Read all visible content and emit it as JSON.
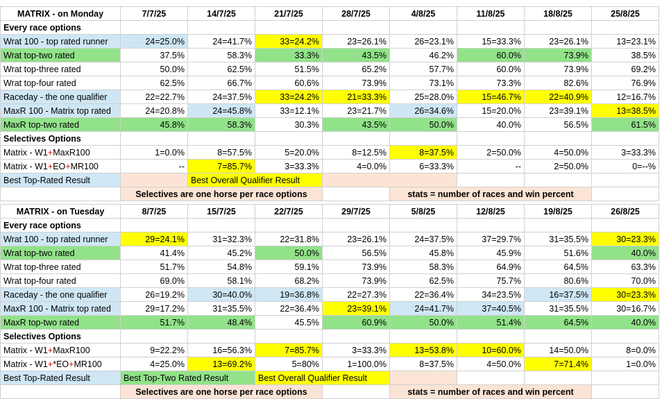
{
  "tables": [
    {
      "title": "MATRIX - on Monday",
      "dates": [
        "7/7/25",
        "14/7/25",
        "21/7/25",
        "28/7/25",
        "4/8/25",
        "11/8/25",
        "18/8/25",
        "25/8/25"
      ],
      "section1": "Every race options",
      "rows": [
        {
          "label": "Wrat 100 - top rated runner",
          "lc": "c-blue",
          "cells": [
            [
              "24=25.0%",
              "c-blue"
            ],
            [
              "24=41.7%",
              ""
            ],
            [
              "33=24.2%",
              "c-yellow"
            ],
            [
              "23=26.1%",
              ""
            ],
            [
              "26=23.1%",
              ""
            ],
            [
              "15=33.3%",
              ""
            ],
            [
              "23=26.1%",
              ""
            ],
            [
              "13=23.1%",
              ""
            ]
          ]
        },
        {
          "label": "Wrat top-two rated",
          "lc": "c-green",
          "cells": [
            [
              "37.5%",
              ""
            ],
            [
              "58.3%",
              ""
            ],
            [
              "33.3%",
              "c-green"
            ],
            [
              "43.5%",
              "c-green"
            ],
            [
              "46.2%",
              ""
            ],
            [
              "60.0%",
              "c-green"
            ],
            [
              "73.9%",
              "c-green"
            ],
            [
              "38.5%",
              ""
            ]
          ]
        },
        {
          "label": "Wrat top-three rated",
          "lc": "",
          "cells": [
            [
              "50.0%",
              ""
            ],
            [
              "62.5%",
              ""
            ],
            [
              "51.5%",
              ""
            ],
            [
              "65.2%",
              ""
            ],
            [
              "57.7%",
              ""
            ],
            [
              "60.0%",
              ""
            ],
            [
              "73.9%",
              ""
            ],
            [
              "69.2%",
              ""
            ]
          ]
        },
        {
          "label": "Wrat top-four rated",
          "lc": "",
          "cells": [
            [
              "62.5%",
              ""
            ],
            [
              "66.7%",
              ""
            ],
            [
              "60.6%",
              ""
            ],
            [
              "73.9%",
              ""
            ],
            [
              "73.1%",
              ""
            ],
            [
              "73.3%",
              ""
            ],
            [
              "82.6%",
              ""
            ],
            [
              "76.9%",
              ""
            ]
          ]
        },
        {
          "label": "Raceday - the one qualifier",
          "lc": "c-blue",
          "cells": [
            [
              "22=22.7%",
              ""
            ],
            [
              "24=37.5%",
              ""
            ],
            [
              "33=24.2%",
              "c-yellow"
            ],
            [
              "21=33.3%",
              "c-yellow"
            ],
            [
              "25=28.0%",
              ""
            ],
            [
              "15=46.7%",
              "c-yellow"
            ],
            [
              "22=40.9%",
              "c-yellow"
            ],
            [
              "12=16.7%",
              ""
            ]
          ]
        },
        {
          "label": "MaxR 100 - Matrix top rated",
          "lc": "c-blue",
          "cells": [
            [
              "24=20.8%",
              ""
            ],
            [
              "24=45.8%",
              "c-blue"
            ],
            [
              "33=12.1%",
              ""
            ],
            [
              "23=21.7%",
              ""
            ],
            [
              "26=34.6%",
              "c-blue"
            ],
            [
              "15=20.0%",
              ""
            ],
            [
              "23=39.1%",
              ""
            ],
            [
              "13=38.5%",
              "c-yellow"
            ]
          ]
        },
        {
          "label": "MaxR top-two rated",
          "lc": "c-green",
          "cells": [
            [
              "45.8%",
              "c-green"
            ],
            [
              "58.3%",
              "c-green"
            ],
            [
              "30.3%",
              ""
            ],
            [
              "43.5%",
              "c-green"
            ],
            [
              "50.0%",
              "c-green"
            ],
            [
              "40.0%",
              ""
            ],
            [
              "56.5%",
              ""
            ],
            [
              "61.5%",
              "c-green"
            ]
          ]
        }
      ],
      "section2": "Selectives Options",
      "sel_rows": [
        {
          "pre": "Matrix - W1",
          "mid": "",
          "post": "MaxR100",
          "cells": [
            [
              "1=0.0%",
              ""
            ],
            [
              "8=57.5%",
              ""
            ],
            [
              "5=20.0%",
              ""
            ],
            [
              "8=12.5%",
              ""
            ],
            [
              "8=37.5%",
              "c-yellow"
            ],
            [
              "2=50.0%",
              ""
            ],
            [
              "4=50.0%",
              ""
            ],
            [
              "3=33.3%",
              ""
            ]
          ]
        },
        {
          "pre": "Matrix - W1",
          "mid": "EO",
          "post": "MR100",
          "cells": [
            [
              "--",
              ""
            ],
            [
              "7=85.7%",
              "c-yellow"
            ],
            [
              "3=33.3%",
              ""
            ],
            [
              "4=0.0%",
              ""
            ],
            [
              "6=33.3%",
              ""
            ],
            [
              "--",
              ""
            ],
            [
              "2=50.0%",
              ""
            ],
            [
              "0=--%",
              ""
            ]
          ]
        }
      ],
      "legend": {
        "best_top": "Best Top-Rated Result",
        "best_toptwo": "",
        "best_overall": "Best Overall Qualifier Result"
      },
      "notes": {
        "left": "Selectives are one horse per race options",
        "right": "stats = number of races and win percent"
      }
    },
    {
      "title": "MATRIX - on Tuesday",
      "dates": [
        "8/7/25",
        "15/7/25",
        "22/7/25",
        "29/7/25",
        "5/8/25",
        "12/8/25",
        "19/8/25",
        "26/8/25"
      ],
      "section1": "Every race options",
      "rows": [
        {
          "label": "Wrat 100 - top rated runner",
          "lc": "c-blue",
          "cells": [
            [
              "29=24.1%",
              "c-yellow"
            ],
            [
              "31=32.3%",
              ""
            ],
            [
              "22=31.8%",
              ""
            ],
            [
              "23=26.1%",
              ""
            ],
            [
              "24=37.5%",
              ""
            ],
            [
              "37=29.7%",
              ""
            ],
            [
              "31=35.5%",
              ""
            ],
            [
              "30=23.3%",
              "c-yellow"
            ]
          ]
        },
        {
          "label": "Wrat top-two rated",
          "lc": "c-green",
          "cells": [
            [
              "41.4%",
              ""
            ],
            [
              "45.2%",
              ""
            ],
            [
              "50.0%",
              "c-green"
            ],
            [
              "56.5%",
              ""
            ],
            [
              "45.8%",
              ""
            ],
            [
              "45.9%",
              ""
            ],
            [
              "51.6%",
              ""
            ],
            [
              "40.0%",
              "c-green"
            ]
          ]
        },
        {
          "label": "Wrat top-three rated",
          "lc": "",
          "cells": [
            [
              "51.7%",
              ""
            ],
            [
              "54.8%",
              ""
            ],
            [
              "59.1%",
              ""
            ],
            [
              "73.9%",
              ""
            ],
            [
              "58.3%",
              ""
            ],
            [
              "64.9%",
              ""
            ],
            [
              "64.5%",
              ""
            ],
            [
              "63.3%",
              ""
            ]
          ]
        },
        {
          "label": "Wrat top-four rated",
          "lc": "",
          "cells": [
            [
              "69.0%",
              ""
            ],
            [
              "58.1%",
              ""
            ],
            [
              "68.2%",
              ""
            ],
            [
              "73.9%",
              ""
            ],
            [
              "62.5%",
              ""
            ],
            [
              "75.7%",
              ""
            ],
            [
              "80.6%",
              ""
            ],
            [
              "70.0%",
              ""
            ]
          ]
        },
        {
          "label": "Raceday - the one qualifier",
          "lc": "c-blue",
          "cells": [
            [
              "26=19.2%",
              ""
            ],
            [
              "30=40.0%",
              "c-blue"
            ],
            [
              "19=36.8%",
              "c-blue"
            ],
            [
              "22=27.3%",
              ""
            ],
            [
              "22=36.4%",
              ""
            ],
            [
              "34=23.5%",
              ""
            ],
            [
              "16=37.5%",
              "c-blue"
            ],
            [
              "30=23.3%",
              "c-yellow"
            ]
          ]
        },
        {
          "label": "MaxR 100 - Matrix top rated",
          "lc": "c-blue",
          "cells": [
            [
              "29=17.2%",
              ""
            ],
            [
              "31=35.5%",
              ""
            ],
            [
              "22=36.4%",
              ""
            ],
            [
              "23=39.1%",
              "c-yellow"
            ],
            [
              "24=41.7%",
              "c-blue"
            ],
            [
              "37=40.5%",
              "c-blue"
            ],
            [
              "31=35.5%",
              ""
            ],
            [
              "30=16.7%",
              ""
            ]
          ]
        },
        {
          "label": "MaxR top-two rated",
          "lc": "c-green",
          "cells": [
            [
              "51.7%",
              "c-green"
            ],
            [
              "48.4%",
              "c-green"
            ],
            [
              "45.5%",
              ""
            ],
            [
              "60.9%",
              "c-green"
            ],
            [
              "50.0%",
              "c-green"
            ],
            [
              "51.4%",
              "c-green"
            ],
            [
              "64.5%",
              "c-green"
            ],
            [
              "40.0%",
              "c-green"
            ]
          ]
        }
      ],
      "section2": "Selectives Options",
      "sel_rows": [
        {
          "pre": "Matrix - W1",
          "mid": "",
          "post": "MaxR100",
          "cells": [
            [
              "9=22.2%",
              ""
            ],
            [
              "16=56.3%",
              ""
            ],
            [
              "7=85.7%",
              "c-yellow"
            ],
            [
              "3=33.3%",
              ""
            ],
            [
              "13=53.8%",
              "c-yellow"
            ],
            [
              "10=60.0%",
              "c-yellow"
            ],
            [
              "14=50.0%",
              ""
            ],
            [
              "8=0.0%",
              ""
            ]
          ]
        },
        {
          "pre": "Matrix - W1",
          "mid": "*EO",
          "post": "MR100",
          "cells": [
            [
              "4=25.0%",
              ""
            ],
            [
              "13=69.2%",
              "c-yellow"
            ],
            [
              "5=80%",
              ""
            ],
            [
              "1=100.0%",
              ""
            ],
            [
              "8=37.5%",
              ""
            ],
            [
              "4=50.0%",
              ""
            ],
            [
              "7=71.4%",
              "c-yellow"
            ],
            [
              "1=0.0%",
              ""
            ]
          ]
        }
      ],
      "legend": {
        "best_top": "Best Top-Rated Result",
        "best_toptwo": "Best Top-Two Rated Result",
        "best_overall": "Best Overall Qualifier Result"
      },
      "notes": {
        "left": "Selectives are one horse per race options",
        "right": "stats = number of races and win percent"
      }
    }
  ],
  "colors": {
    "blue": "#cfe7f5",
    "green": "#92e28a",
    "yellow": "#ffff00",
    "peach": "#fbe4d5",
    "red": "#e00000"
  }
}
